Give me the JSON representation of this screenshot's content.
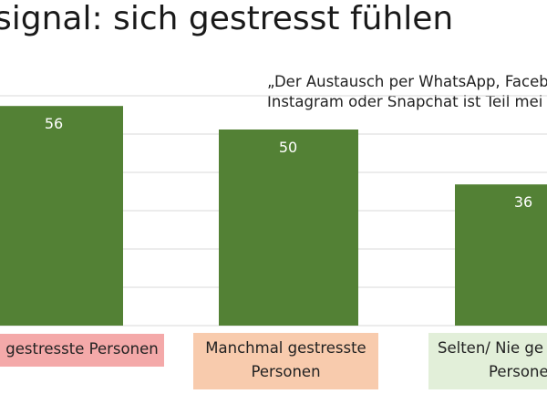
{
  "title": "signal: sich gestresst fühlen",
  "quote_lines": [
    "„Der Austausch per WhatsApp, Faceb",
    "Instagram oder Snapchat ist Teil mei"
  ],
  "chart_data": {
    "type": "bar",
    "categories": [
      "gestresste Personen",
      "Manchmal gestresste Personen",
      "Selten/ Nie ge Persone"
    ],
    "category_label_lines": [
      [
        "gestresste Personen"
      ],
      [
        "Manchmal gestresste",
        "Personen"
      ],
      [
        "Selten/ Nie ge",
        "Persone"
      ]
    ],
    "values": [
      56,
      50,
      36
    ],
    "data_labels": [
      "56",
      "50",
      "36"
    ],
    "ylim": [
      0,
      60
    ],
    "grid": true,
    "colors": {
      "bar": "#538135",
      "gridline": "#d9d9d9",
      "label_bg": [
        "#f4a9a9",
        "#f8cbad",
        "#e2efd9"
      ]
    }
  }
}
